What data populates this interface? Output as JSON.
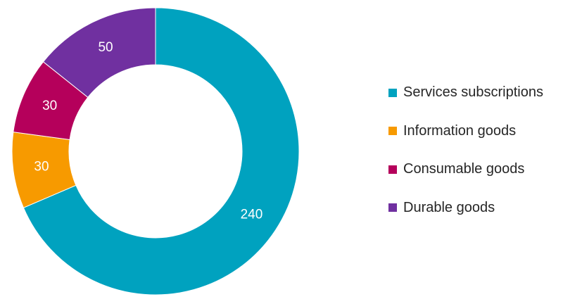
{
  "chart_data": {
    "type": "pie",
    "donut": true,
    "categories": [
      "Services subscriptions",
      "Information goods",
      "Consumable goods",
      "Durable goods"
    ],
    "values": [
      240,
      30,
      30,
      50
    ],
    "colors": [
      "#00a2bf",
      "#f79a00",
      "#b5005b",
      "#7030a0"
    ],
    "data_labels": [
      "240",
      "30",
      "30",
      "50"
    ],
    "legend": {
      "position": "right"
    }
  }
}
